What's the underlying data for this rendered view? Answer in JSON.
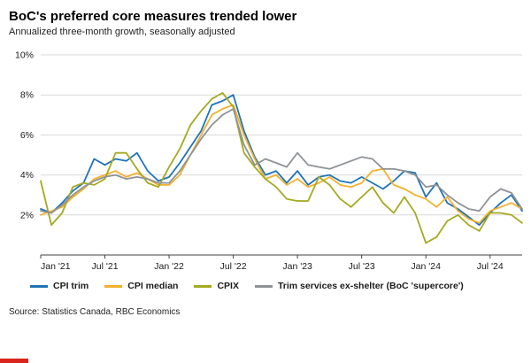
{
  "chart_data": {
    "type": "line",
    "title": "BoC's preferred core measures trended lower",
    "subtitle": "Annualized three-month growth, seasonally adjusted",
    "source": "Source: Statistics Canada, RBC Economics",
    "accent_color": "#d9251d",
    "axis_color": "#404040",
    "grid_color": "#d9d9d9",
    "ylim": [
      0,
      10
    ],
    "yticks": [
      2,
      4,
      6,
      8,
      10
    ],
    "ytick_suffix": "%",
    "n_points": 46,
    "x_tick_labels": [
      "Jan '21",
      "Jul '21",
      "Jan '22",
      "Jul '22",
      "Jan '23",
      "Jul '23",
      "Jan '24",
      "Jul '24"
    ],
    "x_tick_indices": [
      0,
      6,
      12,
      18,
      24,
      30,
      36,
      42
    ],
    "legend_position": "bottom",
    "grid": "horizontal",
    "series": [
      {
        "name": "CPI trim",
        "color": "#1f74b8",
        "values": [
          2.3,
          2.1,
          2.6,
          3.2,
          3.6,
          4.8,
          4.5,
          4.8,
          4.7,
          5.1,
          4.2,
          3.7,
          3.9,
          4.6,
          5.4,
          6.2,
          7.5,
          7.7,
          8.0,
          6.2,
          4.9,
          4.0,
          4.2,
          3.6,
          4.2,
          3.5,
          3.9,
          4.0,
          3.7,
          3.6,
          3.9,
          3.6,
          3.3,
          3.7,
          4.2,
          4.1,
          2.9,
          3.6,
          2.6,
          2.3,
          1.9,
          1.5,
          2.1,
          2.6,
          3.0,
          2.2
        ]
      },
      {
        "name": "CPI median",
        "color": "#f2b12c",
        "values": [
          2.0,
          2.2,
          2.4,
          2.9,
          3.3,
          3.8,
          4.0,
          4.2,
          3.9,
          4.1,
          3.8,
          3.5,
          3.5,
          4.0,
          5.0,
          6.0,
          7.0,
          7.3,
          7.5,
          6.0,
          4.8,
          3.8,
          4.0,
          3.5,
          3.8,
          3.4,
          3.6,
          3.9,
          3.5,
          3.4,
          3.6,
          4.2,
          4.3,
          3.5,
          3.3,
          3.0,
          2.8,
          2.4,
          2.9,
          2.2,
          1.8,
          1.6,
          2.2,
          2.4,
          2.6,
          2.3
        ]
      },
      {
        "name": "CPIX",
        "color": "#a4aa1f",
        "values": [
          3.7,
          1.5,
          2.1,
          3.4,
          3.6,
          3.5,
          3.8,
          5.1,
          5.1,
          4.3,
          3.6,
          3.4,
          4.4,
          5.3,
          6.5,
          7.2,
          7.8,
          8.1,
          7.4,
          5.1,
          4.4,
          3.8,
          3.4,
          2.8,
          2.7,
          2.7,
          3.9,
          3.5,
          2.8,
          2.4,
          2.9,
          3.4,
          2.6,
          2.1,
          2.9,
          2.1,
          0.6,
          0.9,
          1.7,
          2.0,
          1.5,
          1.2,
          2.1,
          2.1,
          2.0,
          1.6
        ]
      },
      {
        "name": "Trim services ex-shelter (BoC 'supercore')",
        "color": "#8f9296",
        "values": [
          2.2,
          2.1,
          2.5,
          3.0,
          3.4,
          3.7,
          3.9,
          4.0,
          3.8,
          3.9,
          3.8,
          3.6,
          3.6,
          4.2,
          5.0,
          5.8,
          6.5,
          7.0,
          7.3,
          5.5,
          4.5,
          4.8,
          4.6,
          4.4,
          5.1,
          4.5,
          4.4,
          4.3,
          4.5,
          4.7,
          4.9,
          4.8,
          4.3,
          4.3,
          4.2,
          4.0,
          3.4,
          3.5,
          3.0,
          2.6,
          2.3,
          2.2,
          2.9,
          3.3,
          3.1,
          2.3
        ]
      }
    ]
  }
}
